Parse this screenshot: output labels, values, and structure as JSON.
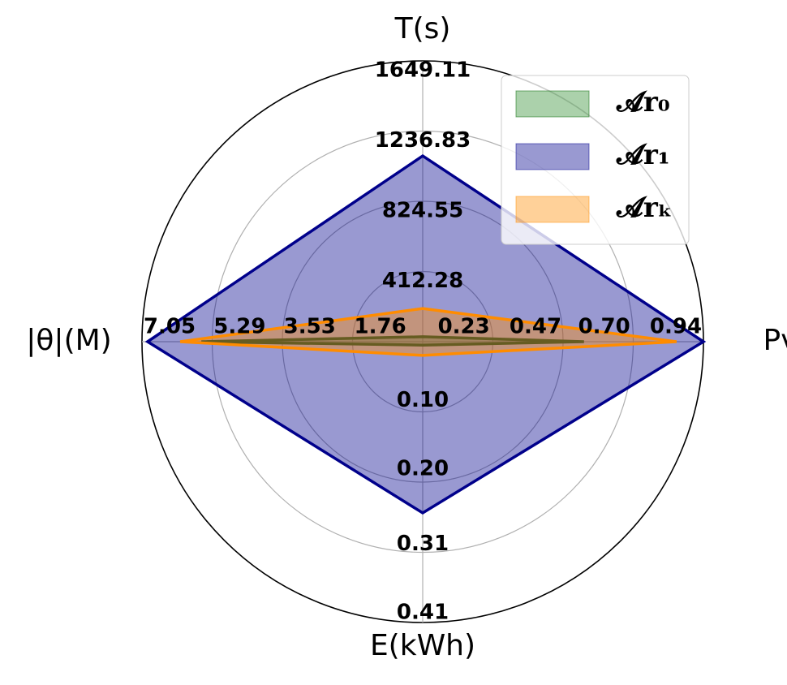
{
  "chart_data": {
    "type": "radar",
    "axes": [
      {
        "label": "T(s)",
        "lim": [
          0,
          1649.11
        ],
        "ticks": [
          412.28,
          824.55,
          1236.83,
          1649.11
        ]
      },
      {
        "label": "Pv",
        "lim": [
          0,
          0.94
        ],
        "ticks": [
          0.23,
          0.47,
          {
            "value": 0.7,
            "label": "0.70"
          },
          0.94
        ]
      },
      {
        "label": "E(kWh)",
        "lim": [
          0,
          0.41
        ],
        "ticks": [
          {
            "value": 0.1,
            "label": "0.10"
          },
          {
            "value": 0.2,
            "label": "0.20"
          },
          0.31,
          0.41
        ]
      },
      {
        "label": "|θ|(M)",
        "lim": [
          0,
          7.05
        ],
        "ticks": [
          1.76,
          3.53,
          5.29,
          7.05
        ]
      }
    ],
    "series": [
      {
        "name": "𝓐r₀",
        "color": "#2e8b2e",
        "edge": "#006400",
        "values": [
          29,
          0.54,
          0.005,
          5.56
        ]
      },
      {
        "name": "𝓐r₁",
        "color": "#00008b",
        "edge": "#00008b",
        "values": [
          1091,
          0.94,
          0.25,
          6.91
        ]
      },
      {
        "name": "𝓐rₖ",
        "color": "#ff8c00",
        "edge": "#ff8c00",
        "values": [
          195,
          0.85,
          0.02,
          6.09
        ]
      }
    ],
    "legend": "upper right",
    "grid": true
  }
}
